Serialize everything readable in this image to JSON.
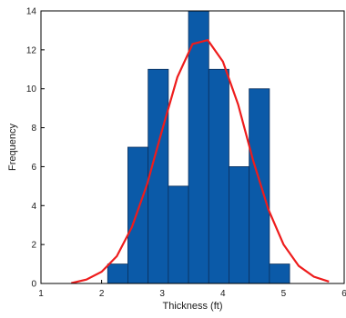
{
  "chart_data": {
    "type": "bar",
    "xlabel": "Thickness (ft)",
    "ylabel": "Frequency",
    "xlim": [
      1,
      6
    ],
    "ylim": [
      0,
      14
    ],
    "x_ticks": [
      1,
      2,
      3,
      4,
      5,
      6
    ],
    "y_ticks": [
      0,
      2,
      4,
      6,
      8,
      10,
      12,
      14
    ],
    "bin_edges": [
      2.1,
      2.433,
      2.767,
      3.1,
      3.433,
      3.767,
      4.1,
      4.433,
      4.767,
      5.1
    ],
    "values": [
      1,
      7,
      11,
      5,
      14,
      11,
      6,
      10,
      1
    ],
    "bar_color": "#0b5aa8",
    "bar_edge_color": "#0a2f5c",
    "curve": {
      "type": "normal_fit",
      "color": "#ee1c1c",
      "x": [
        1.5,
        1.75,
        2.0,
        2.25,
        2.5,
        2.75,
        3.0,
        3.25,
        3.5,
        3.75,
        4.0,
        4.25,
        4.5,
        4.75,
        5.0,
        5.25,
        5.5,
        5.75
      ],
      "y": [
        0.02,
        0.2,
        0.6,
        1.4,
        2.9,
        5.1,
        7.9,
        10.6,
        12.3,
        12.5,
        11.4,
        9.2,
        6.3,
        3.8,
        2.0,
        0.9,
        0.35,
        0.1
      ]
    },
    "grid": false,
    "legend": "none"
  }
}
